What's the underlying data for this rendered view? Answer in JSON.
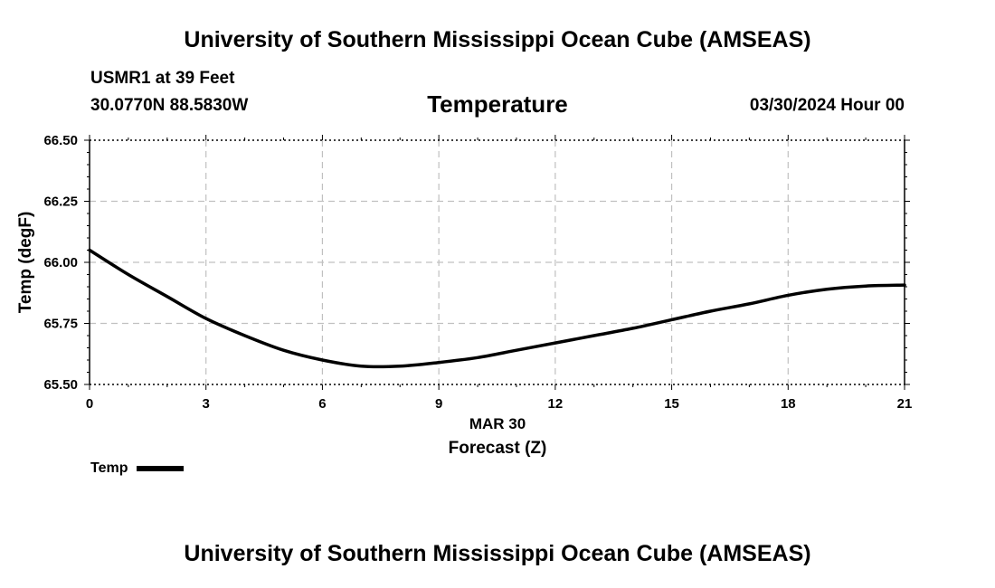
{
  "header": {
    "title": "University of Southern Mississippi Ocean Cube (AMSEAS)",
    "station": "USMR1 at 39 Feet",
    "coords": "30.0770N  88.5830W",
    "variable": "Temperature",
    "datetime": "03/30/2024 Hour 00"
  },
  "footer": {
    "title": "University of Southern Mississippi Ocean Cube (AMSEAS)"
  },
  "legend": {
    "label": "Temp"
  },
  "chart_data": {
    "type": "line",
    "title": "Temperature",
    "xlabel": "Forecast (Z)",
    "x_date_label": "MAR 30",
    "ylabel": "Temp (degF)",
    "xlim": [
      0,
      21
    ],
    "ylim": [
      65.5,
      66.5
    ],
    "x_ticks": [
      0,
      3,
      6,
      9,
      12,
      15,
      18,
      21
    ],
    "x_tick_labels": [
      "0",
      "3",
      "6",
      "9",
      "12",
      "15",
      "18",
      "21"
    ],
    "y_ticks": [
      65.5,
      65.75,
      66.0,
      66.25,
      66.5
    ],
    "y_tick_labels": [
      "65.50",
      "65.75",
      "66.00",
      "66.25",
      "66.50"
    ],
    "grid": true,
    "series": [
      {
        "name": "Temp",
        "x": [
          0,
          1,
          2,
          3,
          4,
          5,
          6,
          7,
          8,
          9,
          10,
          11,
          12,
          13,
          14,
          15,
          16,
          17,
          18,
          19,
          20,
          21
        ],
        "values": [
          66.05,
          65.95,
          65.86,
          65.77,
          65.7,
          65.64,
          65.6,
          65.575,
          65.575,
          65.59,
          65.61,
          65.64,
          65.67,
          65.7,
          65.73,
          65.765,
          65.8,
          65.83,
          65.865,
          65.89,
          65.903,
          65.907
        ]
      }
    ]
  }
}
